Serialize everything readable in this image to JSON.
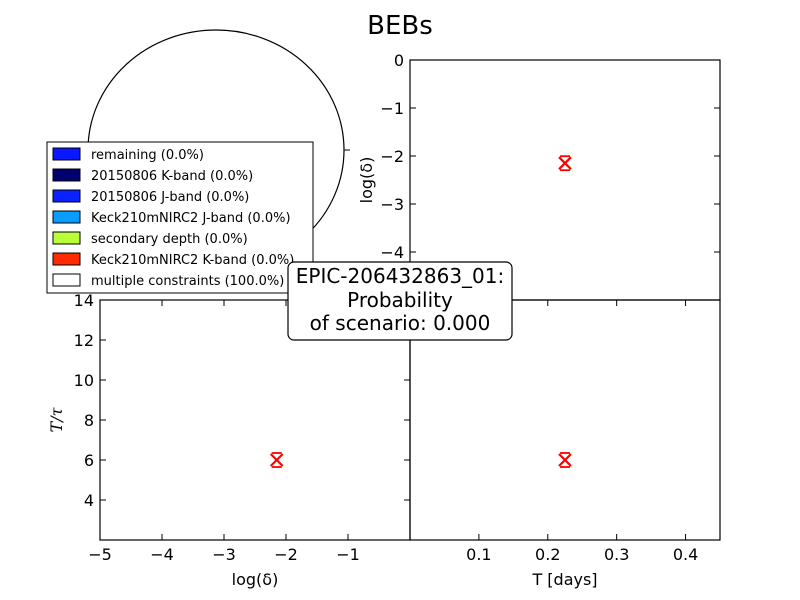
{
  "title": "BEBs",
  "annotation": {
    "line1": "EPIC-206432863_01:",
    "line2": "Probability",
    "line3": "of scenario: 0.000"
  },
  "colors": {
    "marker": "#ff0000",
    "axis": "#000000"
  },
  "chart_data": [
    {
      "type": "pie",
      "panel": "pie",
      "legend_placement": "left, overlapping pie",
      "slices": [
        {
          "label": "remaining (0.0%)",
          "value": 0.0,
          "color": "#0a18ff"
        },
        {
          "label": "20150806 K-band (0.0%)",
          "value": 0.0,
          "color": "#00006e"
        },
        {
          "label": "20150806 J-band (0.0%)",
          "value": 0.0,
          "color": "#0a22ff"
        },
        {
          "label": "Keck210mNIRC2 J-band (0.0%)",
          "value": 0.0,
          "color": "#0a9cff"
        },
        {
          "label": "secondary depth (0.0%)",
          "value": 0.0,
          "color": "#b8ff3a"
        },
        {
          "label": "Keck210mNIRC2 K-band (0.0%)",
          "value": 0.0,
          "color": "#ff2a00"
        },
        {
          "label": "multiple constraints (100.0%)",
          "value": 100.0,
          "color": "#ffffff"
        }
      ]
    },
    {
      "type": "scatter",
      "panel": "top-right",
      "xlabel": "",
      "ylabel": "log(δ)",
      "xlim": [
        0.0,
        0.45
      ],
      "ylim": [
        -5,
        0
      ],
      "yticks": [
        "0",
        "−1",
        "−2",
        "−3",
        "−4"
      ],
      "points": [
        {
          "x": 0.225,
          "y": -2.15
        }
      ]
    },
    {
      "type": "scatter",
      "panel": "bottom-left",
      "xlabel": "log(δ)",
      "ylabel": "T/τ",
      "xlim": [
        -5,
        0
      ],
      "ylim": [
        2,
        14
      ],
      "xticks": [
        "−5",
        "−4",
        "−3",
        "−2",
        "−1"
      ],
      "yticks": [
        "4",
        "6",
        "8",
        "10",
        "12",
        "14"
      ],
      "points": [
        {
          "x": -2.15,
          "y": 6.0
        }
      ]
    },
    {
      "type": "scatter",
      "panel": "bottom-right",
      "xlabel": "T [days]",
      "ylabel": "",
      "xlim": [
        0.0,
        0.45
      ],
      "ylim": [
        2,
        14
      ],
      "xticks": [
        "0.1",
        "0.2",
        "0.3",
        "0.4"
      ],
      "points": [
        {
          "x": 0.225,
          "y": 6.0
        }
      ]
    }
  ]
}
